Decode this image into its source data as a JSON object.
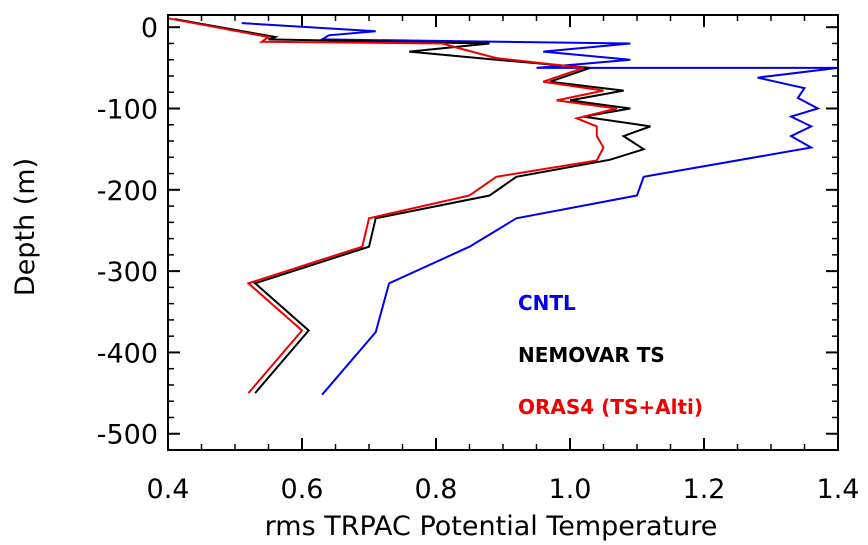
{
  "chart_data": {
    "type": "line",
    "title": "",
    "xlabel": "rms  TRPAC Potential Temperature",
    "ylabel": "Depth (m)",
    "xlim": [
      0.4,
      1.4
    ],
    "ylim": [
      -520,
      15
    ],
    "x_ticks": [
      "0.4",
      "0.6",
      "0.8",
      "1.0",
      "1.2",
      "1.4"
    ],
    "x_tick_values": [
      0.4,
      0.6,
      0.8,
      1.0,
      1.2,
      1.4
    ],
    "y_ticks": [
      "0",
      "-100",
      "-200",
      "-300",
      "-400",
      "-500"
    ],
    "y_tick_values": [
      0,
      -100,
      -200,
      -300,
      -400,
      -500
    ],
    "legend_position": "bottom-right",
    "series": [
      {
        "name": "CNTL",
        "color": "#0000ee",
        "points": [
          [
            0.51,
            5
          ],
          [
            0.71,
            -5
          ],
          [
            0.64,
            -10
          ],
          [
            0.63,
            -15
          ],
          [
            1.09,
            -20
          ],
          [
            0.96,
            -30
          ],
          [
            1.09,
            -40
          ],
          [
            0.95,
            -50
          ],
          [
            1.4,
            -50
          ],
          [
            1.28,
            -62
          ],
          [
            1.35,
            -75
          ],
          [
            1.34,
            -87
          ],
          [
            1.37,
            -100
          ],
          [
            1.33,
            -110
          ],
          [
            1.36,
            -122
          ],
          [
            1.33,
            -134
          ],
          [
            1.36,
            -148
          ],
          [
            1.11,
            -184
          ],
          [
            1.1,
            -207
          ],
          [
            0.92,
            -235
          ],
          [
            0.85,
            -270
          ],
          [
            0.73,
            -315
          ],
          [
            0.71,
            -375
          ],
          [
            0.63,
            -452
          ]
        ]
      },
      {
        "name": "NEMOVAR TS",
        "color": "#000000",
        "points": [
          [
            0.41,
            10
          ],
          [
            0.56,
            -12
          ],
          [
            0.55,
            -15
          ],
          [
            0.88,
            -20
          ],
          [
            0.76,
            -30
          ],
          [
            0.89,
            -40
          ],
          [
            1.03,
            -50
          ],
          [
            0.97,
            -67
          ],
          [
            1.08,
            -78
          ],
          [
            1.0,
            -90
          ],
          [
            1.09,
            -100
          ],
          [
            1.02,
            -110
          ],
          [
            1.12,
            -122
          ],
          [
            1.08,
            -134
          ],
          [
            1.11,
            -150
          ],
          [
            1.06,
            -163
          ],
          [
            0.92,
            -184
          ],
          [
            0.88,
            -207
          ],
          [
            0.71,
            -235
          ],
          [
            0.7,
            -270
          ],
          [
            0.53,
            -315
          ],
          [
            0.61,
            -373
          ],
          [
            0.53,
            -450
          ]
        ]
      },
      {
        "name": "ORAS4 (TS+Alti)",
        "color": "#ee0000",
        "points": [
          [
            0.4,
            11
          ],
          [
            0.55,
            -12
          ],
          [
            0.54,
            -18
          ],
          [
            0.81,
            -20
          ],
          [
            0.83,
            -25
          ],
          [
            0.89,
            -38
          ],
          [
            1.02,
            -50
          ],
          [
            0.96,
            -67
          ],
          [
            1.05,
            -78
          ],
          [
            0.98,
            -90
          ],
          [
            1.07,
            -100
          ],
          [
            1.01,
            -112
          ],
          [
            1.04,
            -122
          ],
          [
            1.04,
            -134
          ],
          [
            1.05,
            -148
          ],
          [
            1.04,
            -164
          ],
          [
            0.89,
            -184
          ],
          [
            0.85,
            -207
          ],
          [
            0.7,
            -235
          ],
          [
            0.69,
            -270
          ],
          [
            0.52,
            -315
          ],
          [
            0.6,
            -373
          ],
          [
            0.52,
            -450
          ]
        ]
      }
    ]
  }
}
